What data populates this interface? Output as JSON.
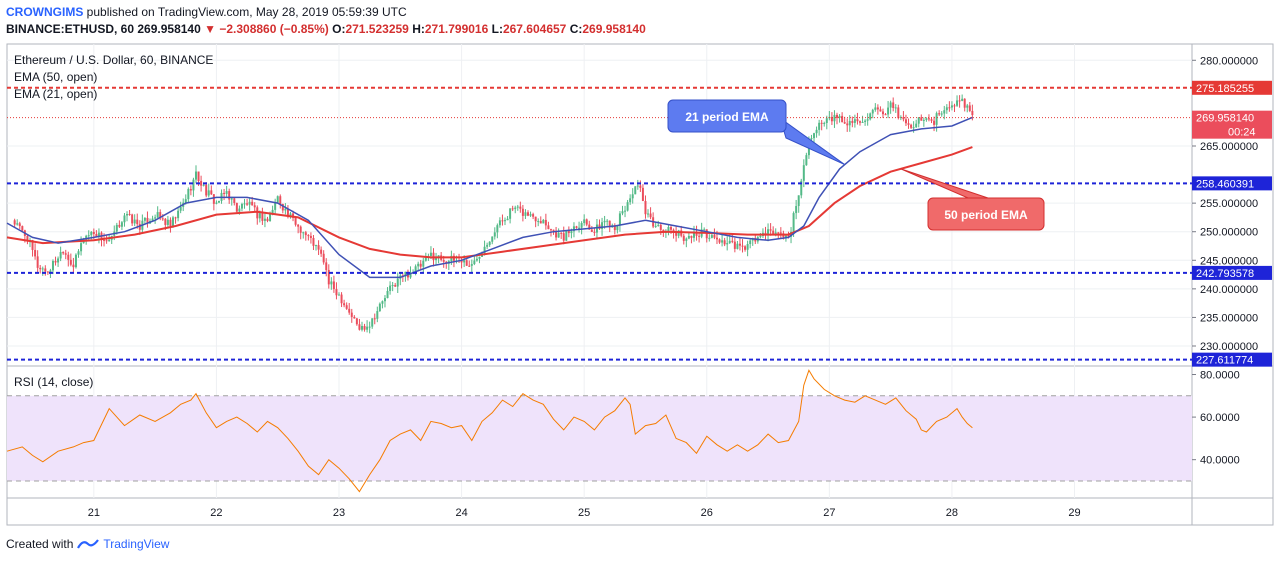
{
  "header": {
    "author": "CROWNGIMS",
    "published_text": "published on TradingView.com, May 28, 2019 05:59:39 UTC",
    "symbol": "BINANCE:ETHUSD, 60",
    "last": "269.958140",
    "change": "−2.308860 (−0.85%)",
    "o_label": "O:",
    "o": "271.523259",
    "h_label": "H:",
    "h": "271.799016",
    "l_label": "L:",
    "l": "267.604657",
    "c_label": "C:",
    "c": "269.958140"
  },
  "legend": {
    "title": "Ethereum / U.S. Dollar, 60, BINANCE",
    "ema50": "EMA (50, open)",
    "ema21": "EMA (21, open)",
    "rsi": "RSI (14, close)"
  },
  "annotations": {
    "ema21_label": "21 period EMA",
    "ema50_label": "50 period EMA"
  },
  "footer": {
    "created_with": "Created with",
    "brand": "TradingView"
  },
  "colors": {
    "up": "#53b987",
    "down": "#eb4d5c",
    "ema21": "#3f51b5",
    "ema50": "#e53935",
    "level_blue": "#1e24d8",
    "level_red": "#e53935",
    "rsi_line": "#f57c00",
    "rsi_band": "#efe3fb",
    "label_blue_bg": "#5d7bf0",
    "label_red_bg": "#f06a6a"
  },
  "chart_data": {
    "type": "candlestick",
    "price_axis": {
      "ylim": [
        226.5,
        282.5
      ],
      "ticks": [
        {
          "v": 280,
          "label": "280.000000"
        },
        {
          "v": 265,
          "label": "265.000000"
        },
        {
          "v": 255,
          "label": "255.000000"
        },
        {
          "v": 250,
          "label": "250.000000"
        },
        {
          "v": 245,
          "label": "245.000000"
        },
        {
          "v": 240,
          "label": "240.000000"
        },
        {
          "v": 235,
          "label": "235.000000"
        },
        {
          "v": 230,
          "label": "230.000000"
        }
      ]
    },
    "levels": [
      {
        "v": 275.185255,
        "label": "275.185255",
        "color": "red"
      },
      {
        "v": 258.460391,
        "label": "258.460391",
        "color": "blue"
      },
      {
        "v": 242.793578,
        "label": "242.793578",
        "color": "blue"
      },
      {
        "v": 227.611774,
        "label": "227.611774",
        "color": "blue"
      }
    ],
    "last_price": {
      "v": 269.95814,
      "label": "269.958140",
      "countdown": "00:24"
    },
    "x_labels": [
      {
        "t": 0,
        "label": "21"
      },
      {
        "t": 24,
        "label": "22"
      },
      {
        "t": 48,
        "label": "23"
      },
      {
        "t": 72,
        "label": "24"
      },
      {
        "t": 96,
        "label": "25"
      },
      {
        "t": 120,
        "label": "26"
      },
      {
        "t": 144,
        "label": "27"
      },
      {
        "t": 168,
        "label": "28"
      },
      {
        "t": 192,
        "label": "29"
      }
    ],
    "x_range": [
      -17,
      215
    ],
    "price_path": [
      [
        -16,
        252
      ],
      [
        -13,
        249
      ],
      [
        -11,
        244
      ],
      [
        -9,
        243
      ],
      [
        -6,
        247
      ],
      [
        -4,
        244
      ],
      [
        -2,
        249
      ],
      [
        0,
        250
      ],
      [
        3,
        248
      ],
      [
        6,
        253
      ],
      [
        9,
        251
      ],
      [
        12,
        253
      ],
      [
        15,
        251
      ],
      [
        17,
        254
      ],
      [
        20,
        260
      ],
      [
        22,
        257
      ],
      [
        24,
        255
      ],
      [
        26,
        257
      ],
      [
        28,
        254
      ],
      [
        30,
        255
      ],
      [
        32,
        253
      ],
      [
        34,
        252
      ],
      [
        36,
        256
      ],
      [
        38,
        253
      ],
      [
        40,
        251
      ],
      [
        43,
        248
      ],
      [
        45,
        245
      ],
      [
        46,
        241
      ],
      [
        48,
        239
      ],
      [
        50,
        236
      ],
      [
        52,
        233
      ],
      [
        54,
        234
      ],
      [
        56,
        237
      ],
      [
        58,
        240
      ],
      [
        60,
        242
      ],
      [
        62,
        243
      ],
      [
        64,
        244
      ],
      [
        66,
        246
      ],
      [
        69,
        245
      ],
      [
        72,
        245
      ],
      [
        74,
        244
      ],
      [
        76,
        247
      ],
      [
        79,
        251
      ],
      [
        82,
        254
      ],
      [
        85,
        253
      ],
      [
        88,
        252
      ],
      [
        90,
        250
      ],
      [
        92,
        249
      ],
      [
        94,
        251
      ],
      [
        96,
        252
      ],
      [
        98,
        250
      ],
      [
        100,
        252
      ],
      [
        102,
        251
      ],
      [
        104,
        254
      ],
      [
        106,
        258
      ],
      [
        107,
        257
      ],
      [
        108,
        253
      ],
      [
        110,
        251
      ],
      [
        113,
        250
      ],
      [
        116,
        249
      ],
      [
        119,
        250
      ],
      [
        121,
        249
      ],
      [
        124,
        248
      ],
      [
        127,
        247
      ],
      [
        130,
        249
      ],
      [
        133,
        250
      ],
      [
        136,
        249
      ],
      [
        138,
        256
      ],
      [
        139,
        262
      ],
      [
        140,
        266
      ],
      [
        141,
        268
      ],
      [
        143,
        269
      ],
      [
        145,
        270
      ],
      [
        148,
        269
      ],
      [
        151,
        270
      ],
      [
        153,
        271
      ],
      [
        155,
        270
      ],
      [
        156,
        272
      ],
      [
        158,
        270
      ],
      [
        160,
        268
      ],
      [
        162,
        270
      ],
      [
        164,
        269
      ],
      [
        166,
        271
      ],
      [
        168,
        272
      ],
      [
        170,
        273
      ],
      [
        171,
        272
      ],
      [
        172,
        270
      ]
    ],
    "rsi_axis": {
      "ylim": [
        22,
        84
      ],
      "ticks": [
        {
          "v": 80,
          "label": "80.0000"
        },
        {
          "v": 60,
          "label": "60.0000"
        },
        {
          "v": 40,
          "label": "40.0000"
        }
      ],
      "band": [
        30,
        70
      ]
    },
    "rsi_path": [
      [
        -17,
        44
      ],
      [
        -14,
        46
      ],
      [
        -12,
        42
      ],
      [
        -10,
        39
      ],
      [
        -7,
        44
      ],
      [
        -4,
        46
      ],
      [
        -2,
        48
      ],
      [
        0,
        49
      ],
      [
        3,
        64
      ],
      [
        6,
        56
      ],
      [
        9,
        61
      ],
      [
        12,
        58
      ],
      [
        15,
        62
      ],
      [
        17,
        66
      ],
      [
        19,
        68
      ],
      [
        20,
        71
      ],
      [
        22,
        62
      ],
      [
        24,
        55
      ],
      [
        26,
        58
      ],
      [
        28,
        60
      ],
      [
        30,
        57
      ],
      [
        32,
        53
      ],
      [
        34,
        58
      ],
      [
        36,
        55
      ],
      [
        38,
        50
      ],
      [
        40,
        44
      ],
      [
        42,
        37
      ],
      [
        44,
        33
      ],
      [
        46,
        40
      ],
      [
        48,
        36
      ],
      [
        50,
        31
      ],
      [
        52,
        25
      ],
      [
        54,
        33
      ],
      [
        56,
        40
      ],
      [
        58,
        49
      ],
      [
        60,
        52
      ],
      [
        62,
        54
      ],
      [
        64,
        49
      ],
      [
        66,
        58
      ],
      [
        68,
        57
      ],
      [
        70,
        55
      ],
      [
        72,
        56
      ],
      [
        74,
        49
      ],
      [
        76,
        58
      ],
      [
        78,
        62
      ],
      [
        80,
        68
      ],
      [
        82,
        65
      ],
      [
        84,
        71
      ],
      [
        86,
        68
      ],
      [
        88,
        66
      ],
      [
        90,
        59
      ],
      [
        92,
        54
      ],
      [
        94,
        60
      ],
      [
        96,
        58
      ],
      [
        98,
        54
      ],
      [
        100,
        60
      ],
      [
        102,
        63
      ],
      [
        104,
        69
      ],
      [
        105,
        66
      ],
      [
        106,
        52
      ],
      [
        108,
        56
      ],
      [
        110,
        57
      ],
      [
        112,
        61
      ],
      [
        114,
        50
      ],
      [
        116,
        48
      ],
      [
        118,
        43
      ],
      [
        120,
        51
      ],
      [
        122,
        47
      ],
      [
        124,
        44
      ],
      [
        126,
        47
      ],
      [
        128,
        44
      ],
      [
        130,
        47
      ],
      [
        132,
        52
      ],
      [
        134,
        48
      ],
      [
        136,
        49
      ],
      [
        138,
        58
      ],
      [
        139,
        75
      ],
      [
        140,
        82
      ],
      [
        141,
        78
      ],
      [
        143,
        73
      ],
      [
        145,
        70
      ],
      [
        147,
        68
      ],
      [
        149,
        67
      ],
      [
        151,
        70
      ],
      [
        153,
        68
      ],
      [
        155,
        66
      ],
      [
        157,
        69
      ],
      [
        159,
        63
      ],
      [
        161,
        59
      ],
      [
        162,
        54
      ],
      [
        163,
        53
      ],
      [
        165,
        58
      ],
      [
        167,
        60
      ],
      [
        169,
        64
      ],
      [
        170,
        60
      ],
      [
        171,
        57
      ],
      [
        172,
        55
      ]
    ],
    "ema21_path": [
      [
        -17,
        251.5
      ],
      [
        -12,
        249
      ],
      [
        -7,
        248
      ],
      [
        0,
        249
      ],
      [
        6,
        250
      ],
      [
        12,
        252
      ],
      [
        18,
        255
      ],
      [
        24,
        256
      ],
      [
        30,
        256
      ],
      [
        36,
        255
      ],
      [
        42,
        252
      ],
      [
        48,
        246
      ],
      [
        54,
        242
      ],
      [
        60,
        242
      ],
      [
        66,
        244
      ],
      [
        72,
        245
      ],
      [
        78,
        247
      ],
      [
        84,
        249
      ],
      [
        90,
        250
      ],
      [
        96,
        250.5
      ],
      [
        102,
        251
      ],
      [
        108,
        252
      ],
      [
        114,
        251
      ],
      [
        120,
        250
      ],
      [
        126,
        249
      ],
      [
        132,
        248.5
      ],
      [
        136,
        249
      ],
      [
        139,
        251
      ],
      [
        142,
        256
      ],
      [
        146,
        261
      ],
      [
        150,
        264
      ],
      [
        156,
        267
      ],
      [
        162,
        268
      ],
      [
        168,
        268.5
      ],
      [
        172,
        270
      ]
    ],
    "ema50_path": [
      [
        -17,
        249
      ],
      [
        -10,
        248
      ],
      [
        0,
        248.5
      ],
      [
        8,
        249.5
      ],
      [
        16,
        251
      ],
      [
        24,
        253
      ],
      [
        32,
        253.5
      ],
      [
        40,
        252.5
      ],
      [
        48,
        249
      ],
      [
        54,
        247
      ],
      [
        60,
        246
      ],
      [
        66,
        245.5
      ],
      [
        72,
        245.5
      ],
      [
        80,
        246.5
      ],
      [
        88,
        247.5
      ],
      [
        96,
        248.5
      ],
      [
        104,
        249.5
      ],
      [
        112,
        250
      ],
      [
        120,
        249.8
      ],
      [
        128,
        249.5
      ],
      [
        136,
        249.5
      ],
      [
        140,
        251
      ],
      [
        145,
        255
      ],
      [
        150,
        258
      ],
      [
        156,
        260.5
      ],
      [
        162,
        262
      ],
      [
        168,
        263.5
      ],
      [
        172,
        264.8
      ]
    ]
  }
}
